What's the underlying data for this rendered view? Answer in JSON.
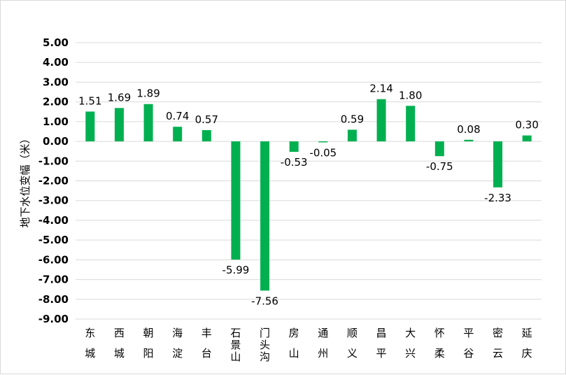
{
  "chart_data": {
    "type": "bar",
    "title": "",
    "xlabel": "",
    "ylabel": "地下水位变幅（米）",
    "categories": [
      "东城",
      "西城",
      "朝阳",
      "海淀",
      "丰台",
      "石景山",
      "门头沟",
      "房山",
      "通州",
      "顺义",
      "昌平",
      "大兴",
      "怀柔",
      "平谷",
      "密云",
      "延庆"
    ],
    "values": [
      1.51,
      1.69,
      1.89,
      0.74,
      0.57,
      -5.99,
      -7.56,
      -0.53,
      -0.05,
      0.59,
      2.14,
      1.8,
      -0.75,
      0.08,
      -2.33,
      0.3
    ],
    "data_labels": [
      "1.51",
      "1.69",
      "1.89",
      "0.74",
      "0.57",
      "-5.99",
      "-7.56",
      "-0.53",
      "-0.05",
      "0.59",
      "2.14",
      "1.80",
      "-0.75",
      "0.08",
      "-2.33",
      "0.30"
    ],
    "ylim": [
      -9,
      5
    ],
    "yticks": [
      "5.00",
      "4.00",
      "3.00",
      "2.00",
      "1.00",
      "0.00",
      "-1.00",
      "-2.00",
      "-3.00",
      "-4.00",
      "-5.00",
      "-6.00",
      "-7.00",
      "-8.00",
      "-9.00"
    ],
    "grid": true,
    "legend": "none",
    "bar_color": "#00b050"
  }
}
